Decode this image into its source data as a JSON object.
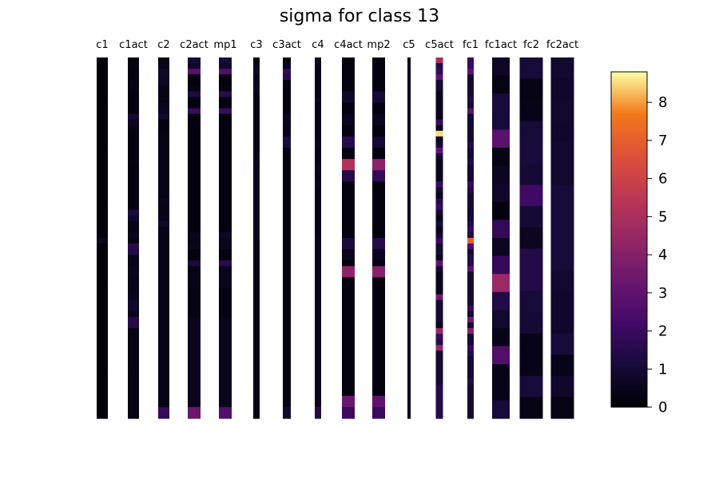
{
  "chart_data": {
    "type": "heatmap",
    "title": "sigma for class 13",
    "colormap": "inferno",
    "colorbar": {
      "vmin": 0,
      "vmax": 8.8,
      "ticks": [
        "0",
        "1",
        "2",
        "3",
        "4",
        "5",
        "6",
        "7",
        "8"
      ]
    },
    "columns": [
      {
        "name": "c1",
        "values": [
          0.1,
          0.1,
          0.1,
          0.1,
          0.1,
          0.1,
          0.1,
          0.1,
          0.1,
          0.1,
          0.1,
          0.1,
          0.1,
          0.1,
          0.1,
          0.1,
          0.1,
          0.1,
          0.1,
          0.1,
          0.1,
          0.1,
          0.1,
          0.1,
          0.1,
          0.1,
          0.1,
          0.1,
          0.1,
          0.1,
          0.1,
          0.1,
          0.6,
          0.1,
          0.1,
          0.1,
          0.1,
          0.1,
          0.1,
          0.1,
          0.1,
          0.1,
          0.1,
          0.1,
          0.1,
          0.1,
          0.1,
          0.1,
          0.1,
          0.1,
          0.1,
          0.1,
          0.1,
          0.1,
          0.1,
          0.1,
          0.1,
          0.1,
          0.1,
          0.1,
          0.1,
          0.1,
          0.1,
          0.1
        ]
      },
      {
        "name": "c1act",
        "values": [
          0.2,
          0.3,
          0.2,
          0.2,
          0.3,
          0.3,
          0.2,
          0.2,
          0.2,
          0.2,
          1.0,
          0.6,
          0.3,
          0.2,
          0.2,
          0.2,
          0.2,
          0.2,
          0.3,
          0.2,
          0.2,
          0.2,
          0.2,
          0.2,
          0.2,
          0.2,
          0.2,
          1.2,
          0.8,
          0.4,
          0.3,
          0.5,
          0.3,
          1.6,
          1.4,
          0.4,
          0.4,
          0.5,
          0.5,
          0.4,
          0.4,
          0.4,
          0.5,
          0.8,
          0.8,
          0.5,
          1.5,
          1.4,
          0.3,
          0.3,
          0.3,
          0.3,
          0.3,
          0.3,
          0.3,
          0.3,
          0.3,
          0.3,
          0.3,
          0.3,
          0.3,
          0.3,
          0.3,
          0.3
        ]
      },
      {
        "name": "c2",
        "values": [
          0.3,
          0.5,
          0.8,
          0.7,
          0.7,
          0.3,
          0.3,
          0.4,
          0.5,
          0.6,
          0.9,
          0.2,
          0.2,
          0.3,
          0.3,
          0.3,
          0.3,
          0.3,
          0.3,
          0.3,
          0.3,
          0.3,
          0.3,
          0.3,
          0.3,
          0.5,
          0.4,
          0.4,
          0.5,
          0.8,
          0.4,
          0.3,
          0.3,
          0.3,
          0.3,
          0.3,
          0.3,
          0.3,
          0.3,
          0.3,
          0.3,
          0.3,
          0.3,
          0.3,
          0.3,
          0.3,
          0.3,
          0.3,
          0.3,
          0.3,
          0.3,
          0.3,
          0.3,
          0.3,
          0.3,
          0.3,
          0.3,
          0.3,
          0.3,
          0.3,
          0.3,
          0.3,
          1.9,
          1.8
        ]
      },
      {
        "name": "c2act",
        "values": [
          1.0,
          0.8,
          2.8,
          0.2,
          0.2,
          0.3,
          1.3,
          0.2,
          0.2,
          2.0,
          0.2,
          0.2,
          0.2,
          0.2,
          0.2,
          0.2,
          0.2,
          0.2,
          0.2,
          0.2,
          0.2,
          0.2,
          0.2,
          0.2,
          0.2,
          0.2,
          0.2,
          0.2,
          0.2,
          0.2,
          0.2,
          0.5,
          0.4,
          0.5,
          0.2,
          0.2,
          1.2,
          0.4,
          0.4,
          0.4,
          0.4,
          0.3,
          0.3,
          0.3,
          0.3,
          0.3,
          0.5,
          0.5,
          0.5,
          0.5,
          0.5,
          0.5,
          0.5,
          0.5,
          0.5,
          0.5,
          0.5,
          0.5,
          0.5,
          0.5,
          0.5,
          0.5,
          3.3,
          3.3
        ]
      },
      {
        "name": "mp1",
        "values": [
          1.1,
          0.9,
          2.6,
          0.2,
          0.2,
          0.3,
          1.6,
          0.2,
          0.2,
          2.0,
          0.2,
          0.2,
          0.2,
          0.2,
          0.2,
          0.2,
          0.2,
          0.2,
          0.2,
          0.2,
          0.2,
          0.2,
          0.2,
          0.2,
          0.2,
          0.2,
          0.2,
          0.2,
          0.2,
          0.2,
          0.2,
          0.7,
          0.5,
          0.5,
          0.2,
          0.2,
          1.6,
          0.5,
          0.5,
          0.5,
          0.5,
          0.3,
          0.3,
          0.3,
          0.3,
          0.3,
          0.5,
          0.5,
          0.5,
          0.5,
          0.5,
          0.5,
          0.5,
          0.5,
          0.5,
          0.5,
          0.5,
          0.5,
          0.5,
          0.5,
          0.5,
          0.5,
          2.6,
          2.6
        ]
      },
      {
        "name": "c3",
        "values": [
          0.4,
          0.6,
          0.7,
          0.4,
          0.5,
          0.6,
          0.4,
          0.4,
          0.4,
          0.4,
          0.4,
          0.4,
          0.4,
          0.4,
          0.4,
          0.4,
          0.4,
          0.4,
          0.6,
          0.5,
          0.5,
          0.5,
          0.5,
          0.5,
          0.5,
          0.5,
          0.5,
          0.5,
          0.5,
          0.5,
          0.5,
          0.5,
          0.4,
          0.4,
          0.4,
          0.4,
          0.4,
          0.4,
          0.4,
          0.4,
          0.4,
          0.4,
          0.4,
          0.4,
          0.4,
          0.4,
          0.4,
          0.4,
          0.4,
          0.4,
          0.4,
          0.4,
          0.4,
          0.4,
          0.4,
          0.4,
          0.4,
          0.4,
          0.4,
          0.4,
          0.4,
          0.4,
          0.4,
          0.4
        ]
      },
      {
        "name": "c3act",
        "values": [
          0.3,
          0.5,
          1.8,
          1.5,
          0.2,
          0.2,
          0.2,
          0.2,
          0.2,
          0.2,
          0.5,
          0.5,
          0.4,
          0.4,
          1.2,
          1.2,
          0.3,
          0.3,
          0.3,
          0.3,
          0.3,
          0.3,
          0.3,
          0.3,
          0.3,
          0.3,
          0.3,
          0.3,
          0.3,
          0.3,
          0.3,
          0.3,
          0.3,
          0.3,
          0.3,
          0.3,
          0.3,
          0.3,
          0.3,
          0.3,
          0.3,
          0.3,
          0.3,
          0.3,
          0.3,
          0.3,
          0.3,
          0.3,
          0.3,
          0.3,
          0.3,
          0.3,
          0.3,
          0.3,
          0.3,
          0.3,
          0.3,
          0.3,
          0.3,
          0.3,
          0.3,
          0.3,
          0.9,
          0.9
        ]
      },
      {
        "name": "c4",
        "values": [
          0.6,
          0.5,
          0.4,
          0.4,
          0.4,
          0.4,
          0.4,
          0.5,
          0.4,
          0.4,
          0.4,
          0.4,
          0.4,
          0.4,
          0.4,
          0.5,
          0.4,
          0.4,
          0.4,
          0.6,
          0.5,
          0.4,
          0.5,
          0.4,
          0.4,
          0.4,
          0.4,
          0.4,
          0.4,
          0.4,
          0.4,
          0.4,
          0.5,
          0.5,
          0.5,
          0.5,
          0.5,
          0.5,
          0.5,
          0.5,
          0.5,
          0.5,
          0.5,
          0.5,
          0.5,
          0.5,
          0.5,
          0.5,
          0.5,
          0.5,
          0.5,
          0.5,
          0.5,
          0.5,
          0.5,
          0.5,
          0.5,
          0.5,
          0.5,
          0.5,
          0.5,
          0.5,
          1.5,
          1.5
        ]
      },
      {
        "name": "c4act",
        "values": [
          0.2,
          0.2,
          0.2,
          0.2,
          0.2,
          0.2,
          0.8,
          0.8,
          0.2,
          0.2,
          0.5,
          0.5,
          0.2,
          0.2,
          1.5,
          1.5,
          0.2,
          0.2,
          5.2,
          5.2,
          1.5,
          1.5,
          0.2,
          0.2,
          0.2,
          0.2,
          0.2,
          0.2,
          0.2,
          0.2,
          0.2,
          0.2,
          1.2,
          1.2,
          0.5,
          0.5,
          0.2,
          4.3,
          4.3,
          0.2,
          0.2,
          0.2,
          0.2,
          0.2,
          0.2,
          0.2,
          0.2,
          0.2,
          0.2,
          0.2,
          0.2,
          0.2,
          0.2,
          0.2,
          0.2,
          0.2,
          0.2,
          0.2,
          0.2,
          0.2,
          3.3,
          3.3,
          2.0,
          2.0
        ]
      },
      {
        "name": "mp2",
        "values": [
          0.2,
          0.2,
          0.2,
          0.2,
          0.2,
          0.2,
          1.0,
          1.0,
          0.2,
          0.2,
          0.5,
          0.5,
          0.2,
          0.2,
          1.0,
          1.0,
          0.2,
          0.2,
          4.2,
          4.2,
          1.8,
          1.8,
          0.2,
          0.2,
          0.2,
          0.2,
          0.2,
          0.2,
          0.2,
          0.2,
          0.2,
          0.2,
          1.5,
          1.5,
          0.5,
          0.5,
          0.2,
          4.0,
          4.0,
          0.2,
          0.2,
          0.2,
          0.2,
          0.2,
          0.2,
          0.2,
          0.2,
          0.2,
          0.2,
          0.2,
          0.2,
          0.2,
          0.2,
          0.2,
          0.2,
          0.2,
          0.2,
          0.2,
          0.2,
          0.2,
          3.0,
          3.0,
          2.0,
          2.0
        ]
      },
      {
        "name": "c5",
        "values": [
          0.5,
          0.8,
          0.5,
          0.5,
          0.5,
          0.5,
          0.5,
          0.5,
          0.5,
          0.5,
          0.5,
          0.5,
          0.5,
          0.5,
          0.5,
          0.5,
          0.5,
          0.5,
          0.5,
          0.5,
          0.5,
          0.5,
          0.5,
          0.5,
          0.5,
          0.5,
          0.5,
          0.5,
          0.5,
          0.5,
          0.5,
          0.5,
          0.5,
          0.5,
          0.5,
          0.5,
          0.5,
          0.5,
          0.5,
          0.5,
          0.5,
          0.5,
          0.5,
          0.5,
          0.5,
          0.5,
          0.5,
          0.5,
          0.5,
          0.5,
          0.5,
          0.5,
          0.5,
          0.5,
          0.5,
          0.5,
          0.5,
          0.5,
          0.5,
          0.5,
          0.5,
          0.5,
          0.5,
          0.5
        ]
      },
      {
        "name": "c5act",
        "values": [
          5.0,
          1.5,
          1.8,
          3.0,
          1.0,
          1.0,
          0.5,
          0.5,
          0.5,
          0.5,
          0.5,
          2.0,
          0.5,
          8.5,
          0.5,
          1.0,
          3.0,
          1.0,
          0.5,
          0.5,
          0.5,
          0.5,
          2.0,
          1.0,
          0.5,
          1.5,
          2.0,
          1.0,
          0.5,
          1.0,
          0.5,
          1.0,
          2.0,
          1.0,
          1.0,
          0.5,
          3.0,
          1.0,
          0.5,
          0.5,
          0.5,
          0.5,
          3.5,
          1.0,
          1.0,
          1.0,
          1.0,
          0.5,
          4.5,
          2.0,
          1.5,
          4.5,
          1.0,
          1.0,
          1.0,
          1.0,
          1.0,
          1.0,
          1.5,
          1.5,
          1.5,
          1.5,
          1.5,
          1.5
        ]
      },
      {
        "name": "fc1",
        "values": [
          2.0,
          2.0,
          3.0,
          1.0,
          1.0,
          1.0,
          1.0,
          1.5,
          1.0,
          3.0,
          1.0,
          1.0,
          1.0,
          1.0,
          1.0,
          1.5,
          1.0,
          1.0,
          1.5,
          1.0,
          1.0,
          1.0,
          2.0,
          1.5,
          1.0,
          1.0,
          1.0,
          1.0,
          1.0,
          1.5,
          2.0,
          1.5,
          7.0,
          2.5,
          1.0,
          1.5,
          1.5,
          3.0,
          1.0,
          1.0,
          1.0,
          1.0,
          1.0,
          1.0,
          2.0,
          1.0,
          3.5,
          1.0,
          4.0,
          1.0,
          1.0,
          2.0,
          1.5,
          1.0,
          1.0,
          1.0,
          1.0,
          1.5,
          1.0,
          1.0,
          1.0,
          1.0,
          1.0,
          1.0
        ]
      },
      {
        "name": "fc1act",
        "values": [
          0.7,
          0.3,
          1.2,
          1.1,
          2.9,
          0.3,
          0.6,
          0.8,
          0.2,
          1.8,
          0.6,
          1.9,
          4.6,
          1.4,
          0.9,
          0.4,
          2.6,
          0.4,
          0.4,
          1.1
        ]
      },
      {
        "name": "fc2",
        "values": [
          1.1,
          0.3,
          0.4,
          1.1,
          1.2,
          1.0,
          2.1,
          1.0,
          0.6,
          1.4,
          1.4,
          1.1,
          1.0,
          0.4,
          0.4,
          1.1,
          0.3
        ]
      },
      {
        "name": "fc2act",
        "values": [
          0.9,
          0.8,
          0.9,
          0.8,
          0.9,
          0.9,
          1.1,
          1.1,
          1.1,
          1.1,
          0.9,
          0.8,
          0.8,
          1.1,
          0.4,
          0.8,
          0.3
        ]
      }
    ]
  }
}
